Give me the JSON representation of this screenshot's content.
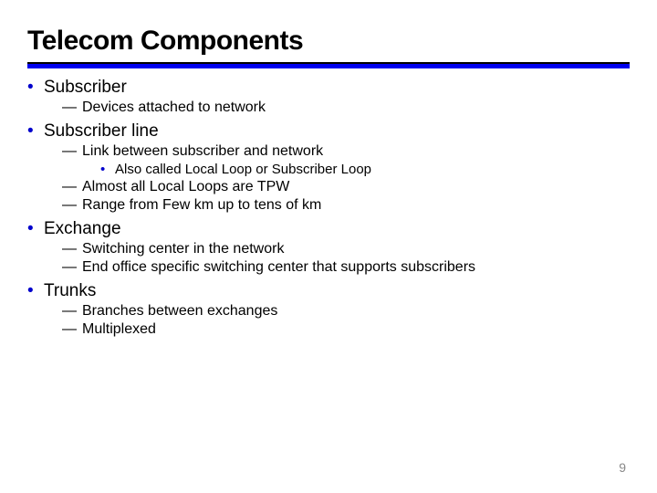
{
  "title": "Telecom Components",
  "colors": {
    "ruleBlack": "#000000",
    "ruleBlue": "#0000ee",
    "bullet": "#0000cc",
    "text": "#000000",
    "pageNum": "#888888",
    "background": "#ffffff"
  },
  "fontsizes": {
    "title": 30,
    "l1": 19,
    "l2": 16,
    "l3": 15,
    "pageNum": 14
  },
  "items": [
    {
      "label": "Subscriber",
      "subs": [
        {
          "text": "Devices attached to network"
        }
      ]
    },
    {
      "label": "Subscriber line",
      "subs": [
        {
          "text": "Link between subscriber and network",
          "subs": [
            {
              "text": "Also called Local Loop or Subscriber Loop"
            }
          ]
        },
        {
          "text": "Almost all Local Loops are TPW"
        },
        {
          "text": "Range from Few km up to tens of km"
        }
      ]
    },
    {
      "label": "Exchange",
      "subs": [
        {
          "text": "Switching center in the network"
        },
        {
          "text": "End office specific switching center that supports subscribers"
        }
      ]
    },
    {
      "label": "Trunks",
      "subs": [
        {
          "text": "Branches between exchanges"
        },
        {
          "text": "Multiplexed"
        }
      ]
    }
  ],
  "pageNumber": "9"
}
